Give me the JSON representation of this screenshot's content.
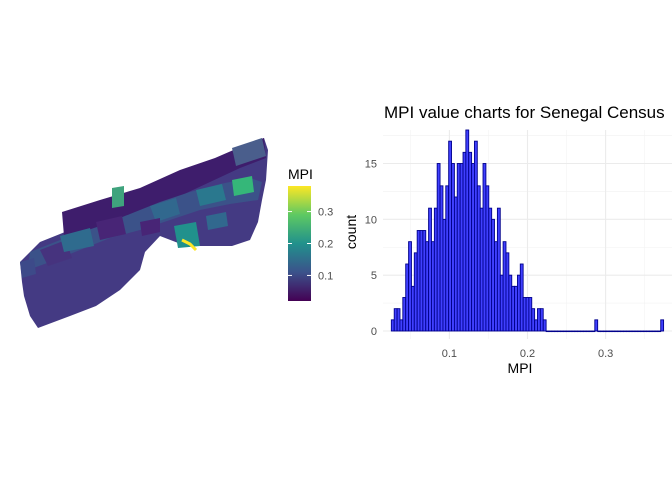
{
  "map": {
    "legend": {
      "title": "MPI",
      "ticks": [
        0.1,
        0.2,
        0.3
      ],
      "tick_labels": [
        "0.1",
        "0.2",
        "0.3"
      ],
      "range": [
        0.02,
        0.38
      ],
      "colors": [
        "#440154",
        "#3b528b",
        "#21918c",
        "#5ec962",
        "#fde725"
      ]
    }
  },
  "chart_data": {
    "type": "bar",
    "title": "MPI value charts for Senegal Census",
    "xlabel": "MPI",
    "ylabel": "count",
    "x_ticks": [
      0.1,
      0.2,
      0.3
    ],
    "x_tick_labels": [
      "0.1",
      "0.2",
      "0.3"
    ],
    "y_ticks": [
      0,
      5,
      10,
      15
    ],
    "y_tick_labels": [
      "0",
      "5",
      "10",
      "15"
    ],
    "xlim": [
      0.015,
      0.385
    ],
    "ylim": [
      0,
      18
    ],
    "grid": true,
    "bar_fill": "#4040ff",
    "bar_stroke": "#00008b",
    "bin_width": 0.00367,
    "x": [
      0.0275,
      0.0312,
      0.0349,
      0.0385,
      0.0422,
      0.0459,
      0.0496,
      0.0532,
      0.0569,
      0.0606,
      0.0642,
      0.0679,
      0.0716,
      0.0752,
      0.0789,
      0.0826,
      0.0862,
      0.0899,
      0.0936,
      0.0972,
      0.1009,
      0.1046,
      0.1083,
      0.1119,
      0.1156,
      0.1193,
      0.1229,
      0.1266,
      0.1303,
      0.1339,
      0.1376,
      0.1413,
      0.1449,
      0.1486,
      0.1523,
      0.1559,
      0.1596,
      0.1633,
      0.167,
      0.1706,
      0.1743,
      0.178,
      0.1816,
      0.1853,
      0.189,
      0.1926,
      0.1963,
      0.2,
      0.2036,
      0.2073,
      0.211,
      0.2146,
      0.2183,
      0.222,
      0.2257,
      0.2293,
      0.233,
      0.2367,
      0.2403,
      0.244,
      0.2477,
      0.2513,
      0.255,
      0.2587,
      0.2623,
      0.266,
      0.2697,
      0.2733,
      0.277,
      0.2807,
      0.2844,
      0.288,
      0.2917,
      0.2954,
      0.299,
      0.3027,
      0.3064,
      0.31,
      0.3137,
      0.3174,
      0.321,
      0.3247,
      0.3284,
      0.332,
      0.3357,
      0.3394,
      0.3431,
      0.3467,
      0.3504,
      0.3541,
      0.3577,
      0.3614,
      0.3651,
      0.3687,
      0.3724
    ],
    "values": [
      1,
      2,
      2,
      1,
      3,
      6,
      8,
      4,
      7,
      9,
      9,
      9,
      8,
      11,
      8,
      11,
      15,
      13,
      10,
      13,
      17,
      15,
      12,
      15,
      15,
      16,
      18,
      16,
      15,
      17,
      13,
      11,
      15,
      13,
      11,
      10,
      8,
      11,
      5,
      8,
      7,
      5,
      4,
      4,
      5,
      6,
      3,
      3,
      3,
      2,
      1,
      2,
      2,
      1,
      0,
      0,
      0,
      0,
      0,
      0,
      0,
      0,
      0,
      0,
      0,
      0,
      0,
      0,
      0,
      0,
      0,
      1,
      0,
      0,
      0,
      0,
      0,
      0,
      0,
      0,
      0,
      0,
      0,
      0,
      0,
      0,
      0,
      0,
      0,
      0,
      0,
      0,
      0,
      0,
      1
    ]
  }
}
